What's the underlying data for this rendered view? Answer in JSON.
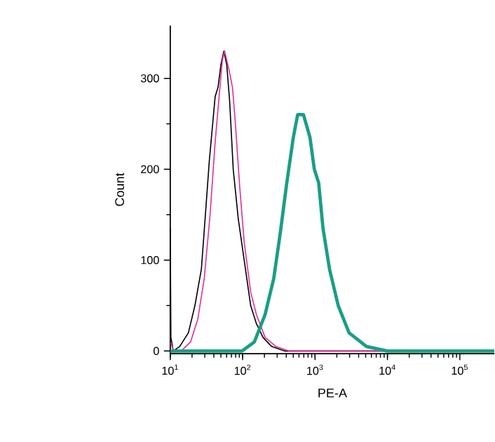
{
  "chart_data": {
    "type": "line",
    "xlabel": "PE-A",
    "ylabel": "Count",
    "log": "x",
    "xlim": [
      10,
      300000
    ],
    "ylim": [
      -3,
      358
    ],
    "xticks": [
      {
        "value": 10,
        "label": "10$^{1}$"
      },
      {
        "value": 100,
        "label": "10$^{2}$"
      },
      {
        "value": 1000,
        "label": "10$^{3}$"
      },
      {
        "value": 10000,
        "label": "10$^{4}$"
      },
      {
        "value": 100000,
        "label": "10$^{5}$"
      }
    ],
    "yticks": [
      0,
      100,
      200,
      300
    ],
    "grid": false,
    "marker": "none",
    "line_style": "solid",
    "series": [
      {
        "color": "#000000",
        "x": [
          10,
          10.2,
          11,
          13.5,
          17.8,
          21.9,
          26.9,
          30.9,
          34.7,
          41.7,
          45.7,
          50.1,
          55,
          60.3,
          66.1,
          74.1,
          87.1,
          105,
          129,
          155,
          191,
          251,
          380,
          10000,
          300000
        ],
        "values": [
          135,
          15,
          0,
          5,
          20,
          50,
          90,
          155,
          210,
          280,
          290,
          315,
          330,
          315,
          275,
          200,
          145,
          100,
          50,
          30,
          15,
          5,
          0,
          0,
          0
        ]
      },
      {
        "color": "#e0309a",
        "x": [
          10,
          11.2,
          14.1,
          19.1,
          24,
          29.5,
          35.5,
          41.7,
          47.9,
          52.5,
          56.2,
          64.6,
          72.4,
          79.4,
          91.2,
          105,
          129,
          155,
          204,
          288,
          437,
          10000,
          300000
        ],
        "values": [
          10,
          0,
          0,
          10,
          35,
          80,
          150,
          230,
          285,
          320,
          330,
          310,
          290,
          250,
          180,
          120,
          65,
          40,
          15,
          5,
          0,
          0,
          0
        ]
      },
      {
        "color": "#1a9e86",
        "x": [
          10,
          56,
          98,
          145,
          204,
          269,
          331,
          407,
          501,
          575,
          692,
          851,
          977,
          1122,
          1288,
          1585,
          2089,
          2951,
          5129,
          10000,
          300000
        ],
        "values": [
          0,
          0,
          0,
          10,
          40,
          80,
          130,
          185,
          235,
          260,
          260,
          235,
          200,
          185,
          135,
          90,
          50,
          20,
          5,
          0,
          0
        ]
      }
    ]
  }
}
